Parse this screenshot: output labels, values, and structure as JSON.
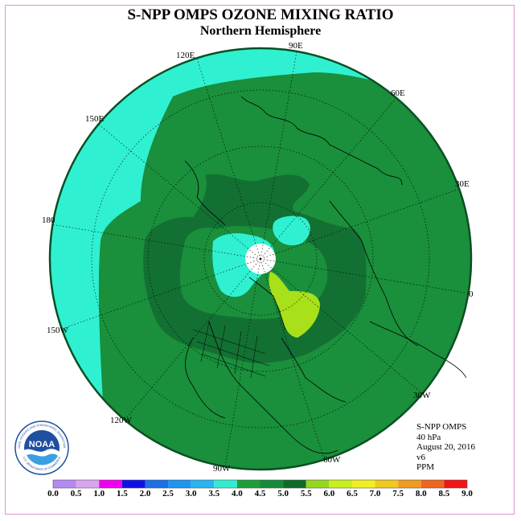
{
  "header": {
    "title": "S-NPP OMPS OZONE MIXING RATIO",
    "subtitle": "Northern Hemisphere"
  },
  "longitude_labels": {
    "lon_90e": "90E",
    "lon_60e": "60E",
    "lon_120e": "120E",
    "lon_30e": "30E",
    "lon_150e": "150E",
    "lon_180": "180",
    "lon_0": "0",
    "lon_150w": "150W",
    "lon_30w": "30W",
    "lon_120w": "120W",
    "lon_60w": "60W",
    "lon_90w": "90W"
  },
  "info": {
    "instrument": "S-NPP OMPS",
    "level": "40 hPa",
    "date": "August 20, 2016",
    "version": "v6",
    "units": "PPM"
  },
  "logo": {
    "text": "NOAA",
    "ring_text": "NATIONAL OCEANIC AND ATMOSPHERIC ADMINISTRATION",
    "ring_text_bottom": "U.S. DEPARTMENT OF COMMERCE"
  },
  "colorbar": {
    "ticks": [
      "0.0",
      "0.5",
      "1.0",
      "1.5",
      "2.0",
      "2.5",
      "3.0",
      "3.5",
      "4.0",
      "4.5",
      "5.0",
      "5.5",
      "6.0",
      "6.5",
      "7.0",
      "7.5",
      "8.0",
      "8.5",
      "9.0"
    ],
    "colors": [
      "#b389f2",
      "#d9a5ee",
      "#ee00ee",
      "#1010e6",
      "#1e6fe6",
      "#1e96f0",
      "#28b4f0",
      "#30ecd2",
      "#1f9e38",
      "#178a3a",
      "#0f6a2a",
      "#96d71e",
      "#c8f01e",
      "#f0f01e",
      "#f0c81e",
      "#f09b1e",
      "#f0641e",
      "#f01414",
      "#8c5a3c"
    ]
  },
  "map_colors": {
    "cyan_low": "#30f0d2",
    "green_mid": "#1a8f3c",
    "green_dark": "#137033",
    "yellow_green": "#a8e01a",
    "pole_white": "#ffffff"
  }
}
